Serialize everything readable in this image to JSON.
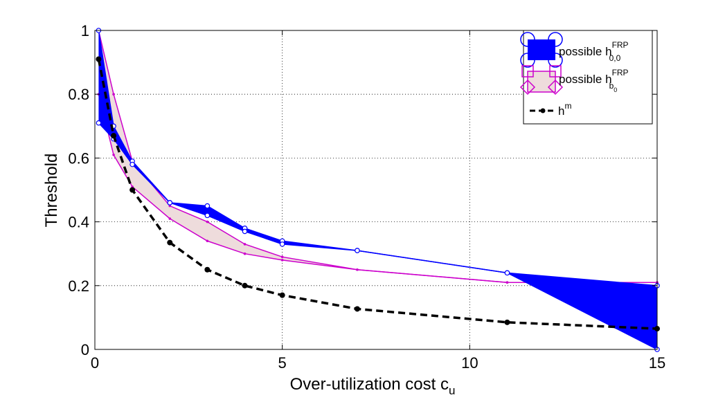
{
  "chart_data": {
    "type": "line",
    "title": "",
    "xlabel": "Over-utilization cost c",
    "xlabel_subscript": "u",
    "ylabel": "Threshold",
    "xlim": [
      0,
      15
    ],
    "ylim": [
      0,
      1
    ],
    "xticks": [
      0,
      5,
      10,
      15
    ],
    "xtick_labels": [
      "0",
      "5",
      "10",
      "15"
    ],
    "yticks": [
      0,
      0.2,
      0.4,
      0.6,
      0.8,
      1
    ],
    "ytick_labels": [
      "0",
      "0.2",
      "0.4",
      "0.6",
      "0.8",
      "1"
    ],
    "grid": true,
    "legend_position": "top-right",
    "x": [
      0.1,
      0.5,
      1,
      2,
      3,
      4,
      5,
      7,
      11,
      15
    ],
    "series": [
      {
        "name": "possible h_{0,0}^{FRP}",
        "kind": "band",
        "color": "#0000ff",
        "fill": "#0000ff",
        "upper": [
          1.0,
          0.7,
          0.59,
          0.46,
          0.45,
          0.38,
          0.34,
          0.31,
          0.24,
          0.2
        ],
        "lower": [
          0.71,
          0.66,
          0.58,
          0.46,
          0.42,
          0.37,
          0.33,
          0.31,
          0.24,
          0.0
        ]
      },
      {
        "name": "possible h_{b_0}^{FRP}",
        "kind": "band",
        "color": "#cc00cc",
        "fill": "#eedcdc",
        "upper": [
          1.0,
          0.8,
          0.59,
          0.45,
          0.4,
          0.33,
          0.29,
          0.25,
          0.21,
          0.21
        ],
        "lower": [
          0.8,
          0.61,
          0.51,
          0.41,
          0.34,
          0.3,
          0.28,
          0.25,
          0.21,
          0.21
        ]
      },
      {
        "name": "h^m",
        "kind": "line",
        "color": "#000000",
        "dash": true,
        "values": [
          0.91,
          0.67,
          0.5,
          0.335,
          0.25,
          0.2,
          0.17,
          0.127,
          0.085,
          0.065
        ]
      }
    ],
    "legend": {
      "entries": [
        {
          "prefix": "possible h",
          "sup": "FRP",
          "sub": "0,0"
        },
        {
          "prefix": "possible h",
          "sup": "FRP",
          "sub": "b",
          "subsub": "0"
        },
        {
          "prefix": "h",
          "sup": "m",
          "sub": ""
        }
      ]
    }
  }
}
